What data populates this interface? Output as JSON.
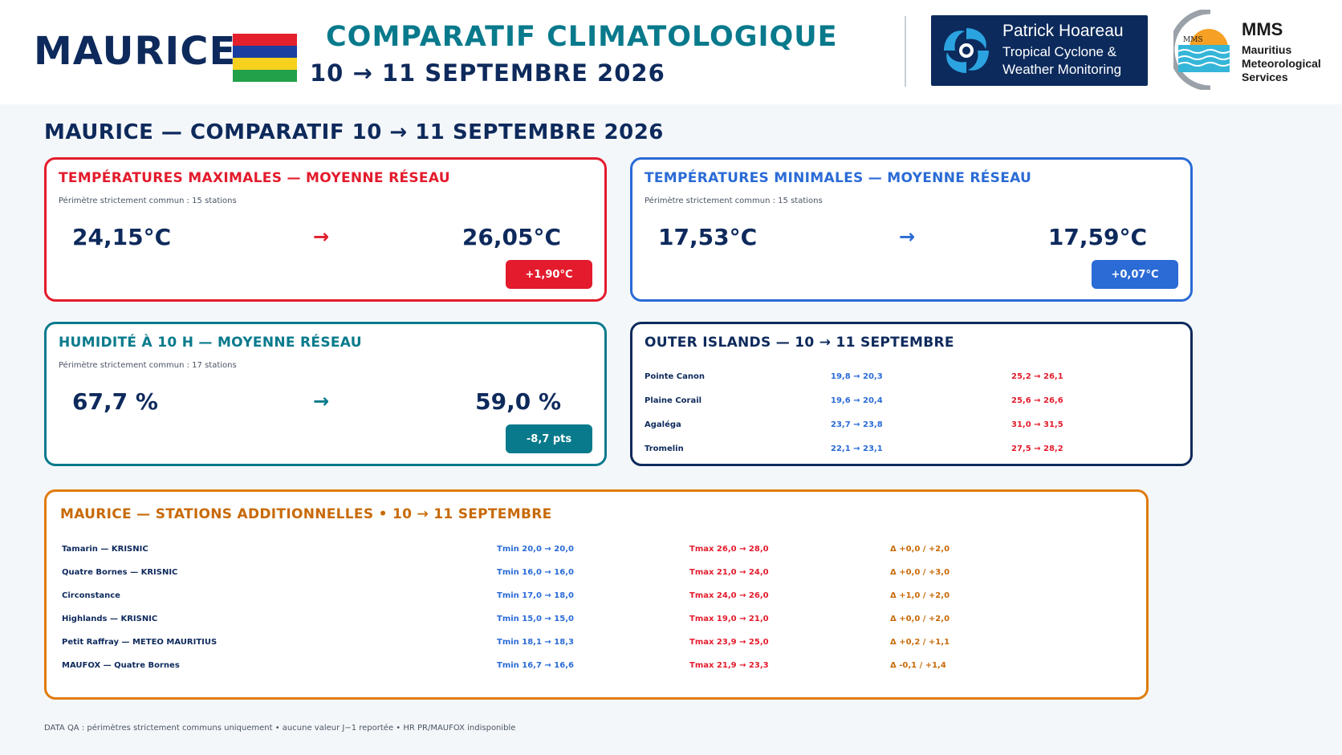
{
  "header": {
    "country": "MAURICE",
    "title": "COMPARATIF CLIMATOLOGIQUE",
    "date_range": "10 → 11 SEPTEMBRE 2026",
    "flag_colors": [
      "#e4202c",
      "#1b3fa0",
      "#f7d11e",
      "#23a04a"
    ],
    "partner_logo": {
      "name": "Patrick Hoareau",
      "subtitle_line1": "Tropical Cyclone &",
      "subtitle_line2": "Weather Monitoring",
      "icon": "cyclone-icon"
    },
    "mms_logo": {
      "abbr": "MMS",
      "line1": "Mauritius",
      "line2": "Meteorological",
      "line3": "Services",
      "badge_text": "MMS",
      "icon": "sun-sea-icon"
    }
  },
  "section_title": "MAURICE — COMPARATIF 10 → 11 SEPTEMBRE 2026",
  "tmax_card": {
    "title": "TEMPÉRATURES MAXIMALES — MOYENNE RÉSEAU",
    "subtitle": "Périmètre strictement commun : 15 stations",
    "from": "24,15°C",
    "arrow": "→",
    "to": "26,05°C",
    "delta": "+1,90°C",
    "color": "#e31b2c"
  },
  "tmin_card": {
    "title": "TEMPÉRATURES MINIMALES — MOYENNE RÉSEAU",
    "subtitle": "Périmètre strictement commun : 15 stations",
    "from": "17,53°C",
    "arrow": "→",
    "to": "17,59°C",
    "delta": "+0,07°C",
    "color": "#2a6bd6"
  },
  "humidity_card": {
    "title": "HUMIDITÉ À 10 H — MOYENNE RÉSEAU",
    "subtitle": "Périmètre strictement commun : 17 stations",
    "from": "67,7 %",
    "arrow": "→",
    "to": "59,0 %",
    "delta": "-8,7 pts",
    "color": "#087a8c"
  },
  "outer_islands": {
    "title": "OUTER ISLANDS — 10 → 11 SEPTEMBRE",
    "rows": [
      {
        "name": "Pointe Canon",
        "tmin": "19,8 → 20,3",
        "tmax": "25,2 → 26,1"
      },
      {
        "name": "Plaine Corail",
        "tmin": "19,6 → 20,4",
        "tmax": "25,6 → 26,6"
      },
      {
        "name": "Agaléga",
        "tmin": "23,7 → 23,8",
        "tmax": "31,0 → 31,5"
      },
      {
        "name": "Tromelin",
        "tmin": "22,1 → 23,1",
        "tmax": "27,5 → 28,2"
      }
    ]
  },
  "additional_stations": {
    "title": "MAURICE — STATIONS ADDITIONNELLES • 10 → 11 SEPTEMBRE",
    "rows": [
      {
        "name": "Tamarin — KRISNIC",
        "tmin": "Tmin 20,0 → 20,0",
        "tmax": "Tmax 26,0 → 28,0",
        "delta": "Δ +0,0 / +2,0"
      },
      {
        "name": "Quatre Bornes — KRISNIC",
        "tmin": "Tmin 16,0 → 16,0",
        "tmax": "Tmax 21,0 → 24,0",
        "delta": "Δ +0,0 / +3,0"
      },
      {
        "name": "Circonstance",
        "tmin": "Tmin 17,0 → 18,0",
        "tmax": "Tmax 24,0 → 26,0",
        "delta": "Δ +1,0 / +2,0"
      },
      {
        "name": "Highlands — KRISNIC",
        "tmin": "Tmin 15,0 → 15,0",
        "tmax": "Tmax 19,0 → 21,0",
        "delta": "Δ +0,0 / +2,0"
      },
      {
        "name": "Petit Raffray — METEO MAURITIUS",
        "tmin": "Tmin 18,1 → 18,3",
        "tmax": "Tmax 23,9 → 25,0",
        "delta": "Δ +0,2 / +1,1"
      },
      {
        "name": "MAUFOX — Quatre Bornes",
        "tmin": "Tmin 16,7 → 16,6",
        "tmax": "Tmax 21,9 → 23,3",
        "delta": "Δ -0,1 / +1,4"
      }
    ]
  },
  "footer": "DATA QA : périmètres strictement communs uniquement • aucune valeur J−1 reportée • HR PR/MAUFOX indisponible"
}
